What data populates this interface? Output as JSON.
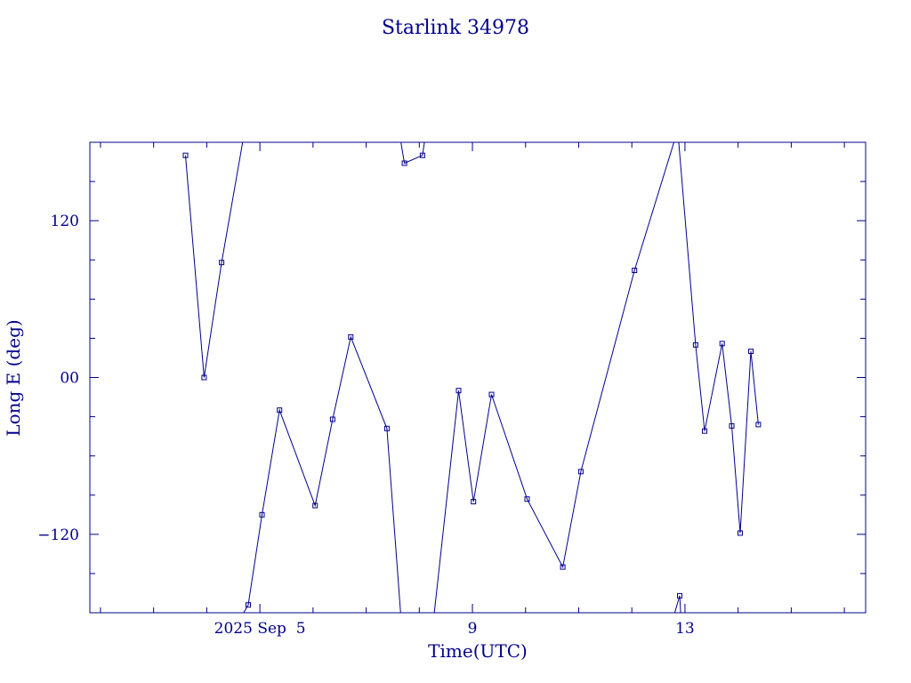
{
  "chart_data": {
    "type": "line",
    "title": "Starlink 34978",
    "xlabel": "Time(UTC)",
    "ylabel": "Long E (deg)",
    "xlim": [
      1.8,
      16.4
    ],
    "ylim": [
      -180,
      180
    ],
    "x_ticks": [
      {
        "x": 5,
        "label": "2025 Sep  5"
      },
      {
        "x": 9,
        "label": "9"
      },
      {
        "x": 13,
        "label": "13"
      }
    ],
    "y_ticks": [
      {
        "y": 120,
        "label": "120"
      },
      {
        "y": 0,
        "label": "00"
      },
      {
        "y": -120,
        "label": "−120"
      }
    ],
    "grid": false,
    "color": "#00008b",
    "marker": "square",
    "series": [
      {
        "points": [
          [
            3.6,
            170
          ],
          [
            3.95,
            0
          ],
          [
            4.28,
            88
          ],
          [
            4.68,
            181
          ]
        ]
      },
      {
        "points": [
          [
            4.68,
            -181
          ],
          [
            4.78,
            -174
          ],
          [
            5.04,
            -105
          ],
          [
            5.37,
            -25
          ],
          [
            6.04,
            -98
          ],
          [
            6.37,
            -32
          ],
          [
            6.71,
            31
          ],
          [
            7.39,
            -39
          ],
          [
            7.65,
            -181
          ]
        ]
      },
      {
        "points": [
          [
            7.65,
            181
          ],
          [
            7.72,
            164
          ],
          [
            8.06,
            170
          ],
          [
            8.1,
            181
          ]
        ]
      },
      {
        "points": [
          [
            8.1,
            -181
          ],
          [
            8.28,
            -181
          ],
          [
            8.74,
            -10
          ],
          [
            9.02,
            -95
          ],
          [
            9.36,
            -13
          ],
          [
            10.03,
            -93
          ],
          [
            10.7,
            -145
          ],
          [
            11.04,
            -72
          ],
          [
            12.05,
            82
          ],
          [
            12.8,
            181
          ]
        ]
      },
      {
        "points": [
          [
            12.8,
            -181
          ],
          [
            12.9,
            -167
          ],
          [
            12.92,
            -181
          ]
        ]
      },
      {
        "points": [
          [
            12.88,
            181
          ],
          [
            13.2,
            25
          ],
          [
            13.37,
            -41
          ],
          [
            13.7,
            26
          ],
          [
            13.88,
            -37
          ],
          [
            14.04,
            -119
          ],
          [
            14.24,
            20
          ],
          [
            14.38,
            -36
          ]
        ]
      }
    ]
  }
}
